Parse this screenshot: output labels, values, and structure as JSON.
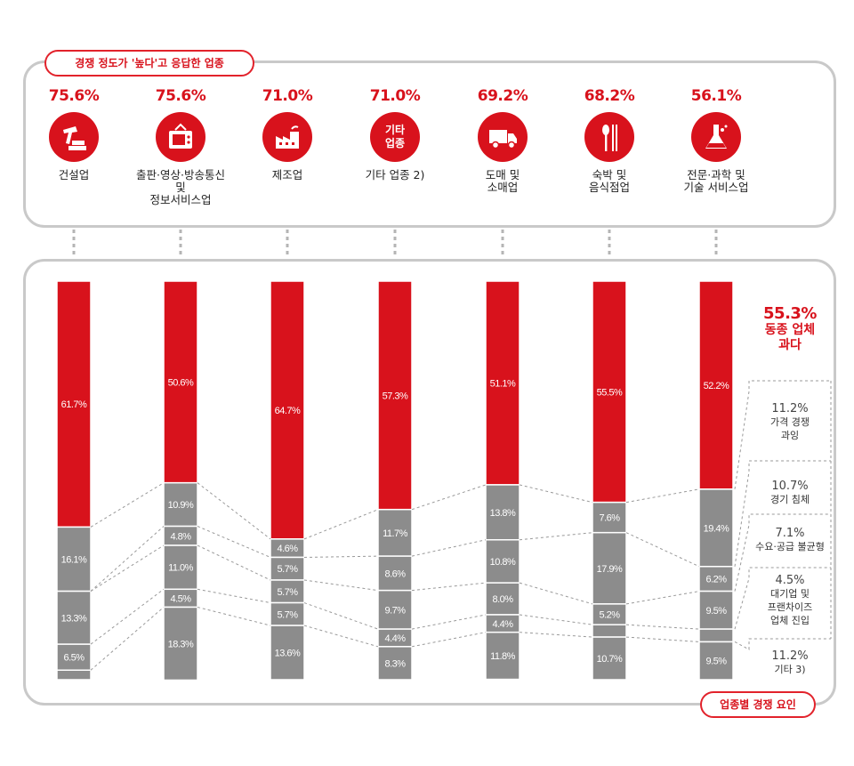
{
  "top_pill": "경쟁 정도가 '높다'고 응답한 업종",
  "bottom_pill": "업종별 경쟁 요인",
  "industries": [
    {
      "pct": "75.6%",
      "label": "건설업",
      "icon": "construction-hammer-icon"
    },
    {
      "pct": "75.6%",
      "label": "출판·영상·방송통신 및\n정보서비스업",
      "icon": "tv-icon"
    },
    {
      "pct": "71.0%",
      "label": "제조업",
      "icon": "factory-icon"
    },
    {
      "pct": "71.0%",
      "label": "기타 업종 2)",
      "icon": "text-icon",
      "icon_text": "기타\n업종"
    },
    {
      "pct": "69.2%",
      "label": "도매 및\n소매업",
      "icon": "truck-icon"
    },
    {
      "pct": "68.2%",
      "label": "숙박 및\n음식점업",
      "icon": "spoon-chopsticks-icon"
    },
    {
      "pct": "56.1%",
      "label": "전문·과학 및\n기술 서비스업",
      "icon": "flask-icon"
    }
  ],
  "legend": {
    "red": {
      "pct": "55.3%",
      "label": "동종 업체\n과다"
    },
    "items": [
      {
        "pct": "11.2%",
        "label": "가격 경쟁\n과잉"
      },
      {
        "pct": "10.7%",
        "label": "경기 침체"
      },
      {
        "pct": "7.1%",
        "label": "수요·공급 불균형"
      },
      {
        "pct": "4.5%",
        "label": "대기업 및\n프랜차이즈\n업체 진입"
      },
      {
        "pct": "11.2%",
        "label": "기타 3)"
      }
    ]
  },
  "colors": {
    "red": "#d8121c",
    "gray": "#8c8c8c",
    "border": "#c9c9c9"
  },
  "chart_data": {
    "type": "bar",
    "stacked": true,
    "categories": [
      "건설업",
      "출판·영상·방송통신 및 정보서비스업",
      "제조업",
      "기타 업종",
      "도매 및 소매업",
      "숙박 및 음식점업",
      "전문·과학 및 기술 서비스업"
    ],
    "series": [
      {
        "name": "동종 업체 과다",
        "values": [
          61.7,
          50.6,
          64.7,
          57.3,
          51.1,
          55.5,
          52.2
        ],
        "labels": [
          "61.7%",
          "50.6%",
          "64.7%",
          "57.3%",
          "51.1%",
          "55.5%",
          "52.2%"
        ]
      },
      {
        "name": "가격 경쟁 과잉",
        "values": [
          16.1,
          10.9,
          4.6,
          11.7,
          13.8,
          7.6,
          19.4
        ],
        "labels": [
          "16.1%",
          "10.9%",
          "4.6%",
          "11.7%",
          "13.8%",
          "7.6%",
          "19.4%"
        ]
      },
      {
        "name": "경기 침체",
        "values": [
          0,
          4.8,
          5.7,
          8.6,
          10.8,
          17.9,
          6.2
        ],
        "labels": [
          "",
          "4.8%",
          "5.7%",
          "8.6%",
          "10.8%",
          "17.9%",
          "6.2%"
        ]
      },
      {
        "name": "수요·공급 불균형",
        "values": [
          13.3,
          11.0,
          5.7,
          9.7,
          8.0,
          5.2,
          9.5
        ],
        "labels": [
          "13.3%",
          "11.0%",
          "5.7%",
          "9.7%",
          "8.0%",
          "5.2%",
          "9.5%"
        ]
      },
      {
        "name": "대기업 및 프랜차이즈 업체 진입",
        "values": [
          6.5,
          4.5,
          5.7,
          4.4,
          4.4,
          3.1,
          3.2
        ],
        "labels": [
          "6.5%",
          "4.5%",
          "5.7%",
          "4.4%",
          "4.4%",
          "",
          ""
        ]
      },
      {
        "name": "기타",
        "values": [
          2.4,
          18.3,
          13.6,
          8.3,
          11.8,
          10.7,
          9.5
        ],
        "labels": [
          "",
          "18.3%",
          "13.6%",
          "8.3%",
          "11.8%",
          "10.7%",
          "9.5%"
        ]
      }
    ],
    "ylim": [
      0,
      100
    ]
  }
}
